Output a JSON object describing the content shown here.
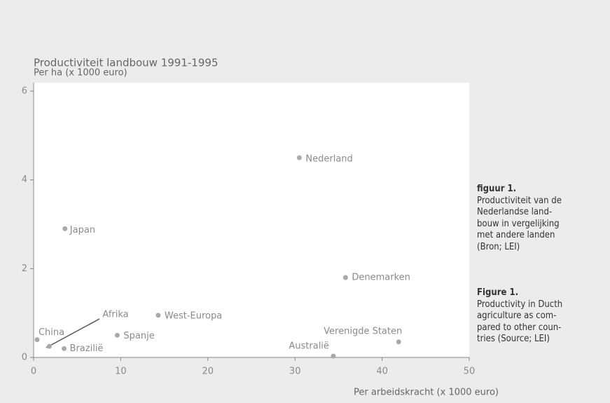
{
  "chart_data": {
    "type": "scatter",
    "title": "Productiviteit landbouw 1991-1995",
    "y_label": "Per ha (x 1000 euro)",
    "x_label": "Per arbeidskracht (x 1000 euro)",
    "labels": [
      "Nederland",
      "Japan",
      "Denemarken",
      "West-Europa",
      "Spanje",
      "China",
      "Afrika",
      "Braziliё",
      "Australiё",
      "Verenigde Staten"
    ],
    "x": [
      30.5,
      3.6,
      35.8,
      14.3,
      9.6,
      0.4,
      1.8,
      3.5,
      34.4,
      41.9
    ],
    "values": [
      4.5,
      2.9,
      1.8,
      0.95,
      0.5,
      0.4,
      0.25,
      0.2,
      0.03,
      0.35
    ],
    "color": "#a9a9a9",
    "xlim": [
      0,
      50
    ],
    "xticks": [
      0,
      10,
      20,
      30,
      40,
      50
    ],
    "ylim": [
      0,
      6
    ],
    "yticks": [
      0,
      2,
      4,
      6
    ]
  },
  "caption_nl": {
    "heading": "figuur 1.",
    "lines": [
      "Productiviteit van de",
      "Nederlandse land-",
      "bouw in vergelijking",
      "met andere landen",
      "(Bron; LEI)"
    ]
  },
  "caption_en": {
    "heading": "Figure 1.",
    "lines": [
      "Productivity in Ducth",
      "agriculture as com-",
      "pared to other coun-",
      "tries (Source; LEI)"
    ]
  }
}
